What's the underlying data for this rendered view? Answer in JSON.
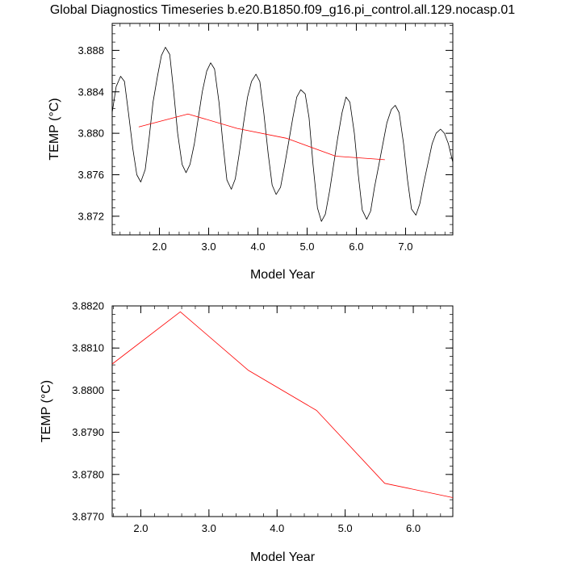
{
  "title": "Global Diagnostics Timeseries b.e20.B1850.f09_g16.pi_control.all.129.nocasp.01",
  "chart_data": [
    {
      "type": "line",
      "xlabel": "Model Year",
      "ylabel": "TEMP (°C)",
      "xlim": [
        1.04,
        7.96
      ],
      "ylim": [
        3.8702,
        3.8906
      ],
      "x_ticks": [
        "2.0",
        "3.0",
        "4.0",
        "5.0",
        "6.0",
        "7.0"
      ],
      "y_ticks": [
        "3.872",
        "3.876",
        "3.880",
        "3.884",
        "3.888"
      ],
      "grid": false,
      "series": [
        {
          "color": "#000000",
          "x": [
            1.04,
            1.12,
            1.21,
            1.29,
            1.37,
            1.46,
            1.54,
            1.62,
            1.71,
            1.79,
            1.87,
            1.96,
            2.04,
            2.12,
            2.21,
            2.29,
            2.37,
            2.46,
            2.54,
            2.62,
            2.71,
            2.79,
            2.87,
            2.96,
            3.04,
            3.12,
            3.21,
            3.29,
            3.37,
            3.46,
            3.54,
            3.62,
            3.71,
            3.79,
            3.87,
            3.96,
            4.04,
            4.12,
            4.21,
            4.29,
            4.37,
            4.46,
            4.54,
            4.62,
            4.71,
            4.79,
            4.87,
            4.96,
            5.04,
            5.12,
            5.21,
            5.29,
            5.37,
            5.46,
            5.54,
            5.62,
            5.71,
            5.79,
            5.87,
            5.96,
            6.04,
            6.12,
            6.21,
            6.29,
            6.37,
            6.46,
            6.54,
            6.62,
            6.71,
            6.79,
            6.87,
            6.96,
            7.04,
            7.12,
            7.21,
            7.29,
            7.37,
            7.46,
            7.54,
            7.62,
            7.71,
            7.79,
            7.87,
            7.96
          ],
          "y": [
            3.882,
            3.8845,
            3.8855,
            3.885,
            3.882,
            3.8785,
            3.876,
            3.8753,
            3.8765,
            3.8795,
            3.883,
            3.8855,
            3.8875,
            3.8883,
            3.8876,
            3.884,
            3.88,
            3.877,
            3.8762,
            3.877,
            3.879,
            3.8815,
            3.884,
            3.886,
            3.8868,
            3.8862,
            3.883,
            3.879,
            3.8755,
            3.8746,
            3.8756,
            3.878,
            3.881,
            3.8835,
            3.885,
            3.8857,
            3.885,
            3.882,
            3.878,
            3.875,
            3.8741,
            3.8748,
            3.8768,
            3.879,
            3.8815,
            3.8835,
            3.8842,
            3.8838,
            3.8815,
            3.877,
            3.8728,
            3.8715,
            3.8722,
            3.8745,
            3.877,
            3.8795,
            3.882,
            3.8835,
            3.883,
            3.88,
            3.876,
            3.8726,
            3.8717,
            3.8725,
            3.8748,
            3.877,
            3.879,
            3.881,
            3.8823,
            3.8827,
            3.882,
            3.879,
            3.8755,
            3.8727,
            3.8721,
            3.8732,
            3.8752,
            3.8772,
            3.879,
            3.88,
            3.8804,
            3.88,
            3.879,
            3.8772
          ]
        },
        {
          "color": "#ff0000",
          "x": [
            1.58,
            2.58,
            3.58,
            4.58,
            5.58,
            6.58
          ],
          "y": [
            3.88062,
            3.88186,
            3.88047,
            3.87952,
            3.87779,
            3.87745
          ]
        }
      ]
    },
    {
      "type": "line",
      "xlabel": "Model Year",
      "ylabel": "TEMP (°C)",
      "xlim": [
        1.58,
        6.58
      ],
      "ylim": [
        3.877,
        3.882
      ],
      "x_ticks": [
        "2.0",
        "3.0",
        "4.0",
        "5.0",
        "6.0"
      ],
      "y_ticks": [
        "3.8770",
        "3.8780",
        "3.8790",
        "3.8800",
        "3.8810",
        "3.8820"
      ],
      "grid": false,
      "series": [
        {
          "color": "#ff0000",
          "x": [
            1.58,
            2.58,
            3.58,
            4.58,
            5.58,
            6.58
          ],
          "y": [
            3.88062,
            3.88186,
            3.88047,
            3.87952,
            3.87779,
            3.87745
          ]
        }
      ]
    }
  ]
}
